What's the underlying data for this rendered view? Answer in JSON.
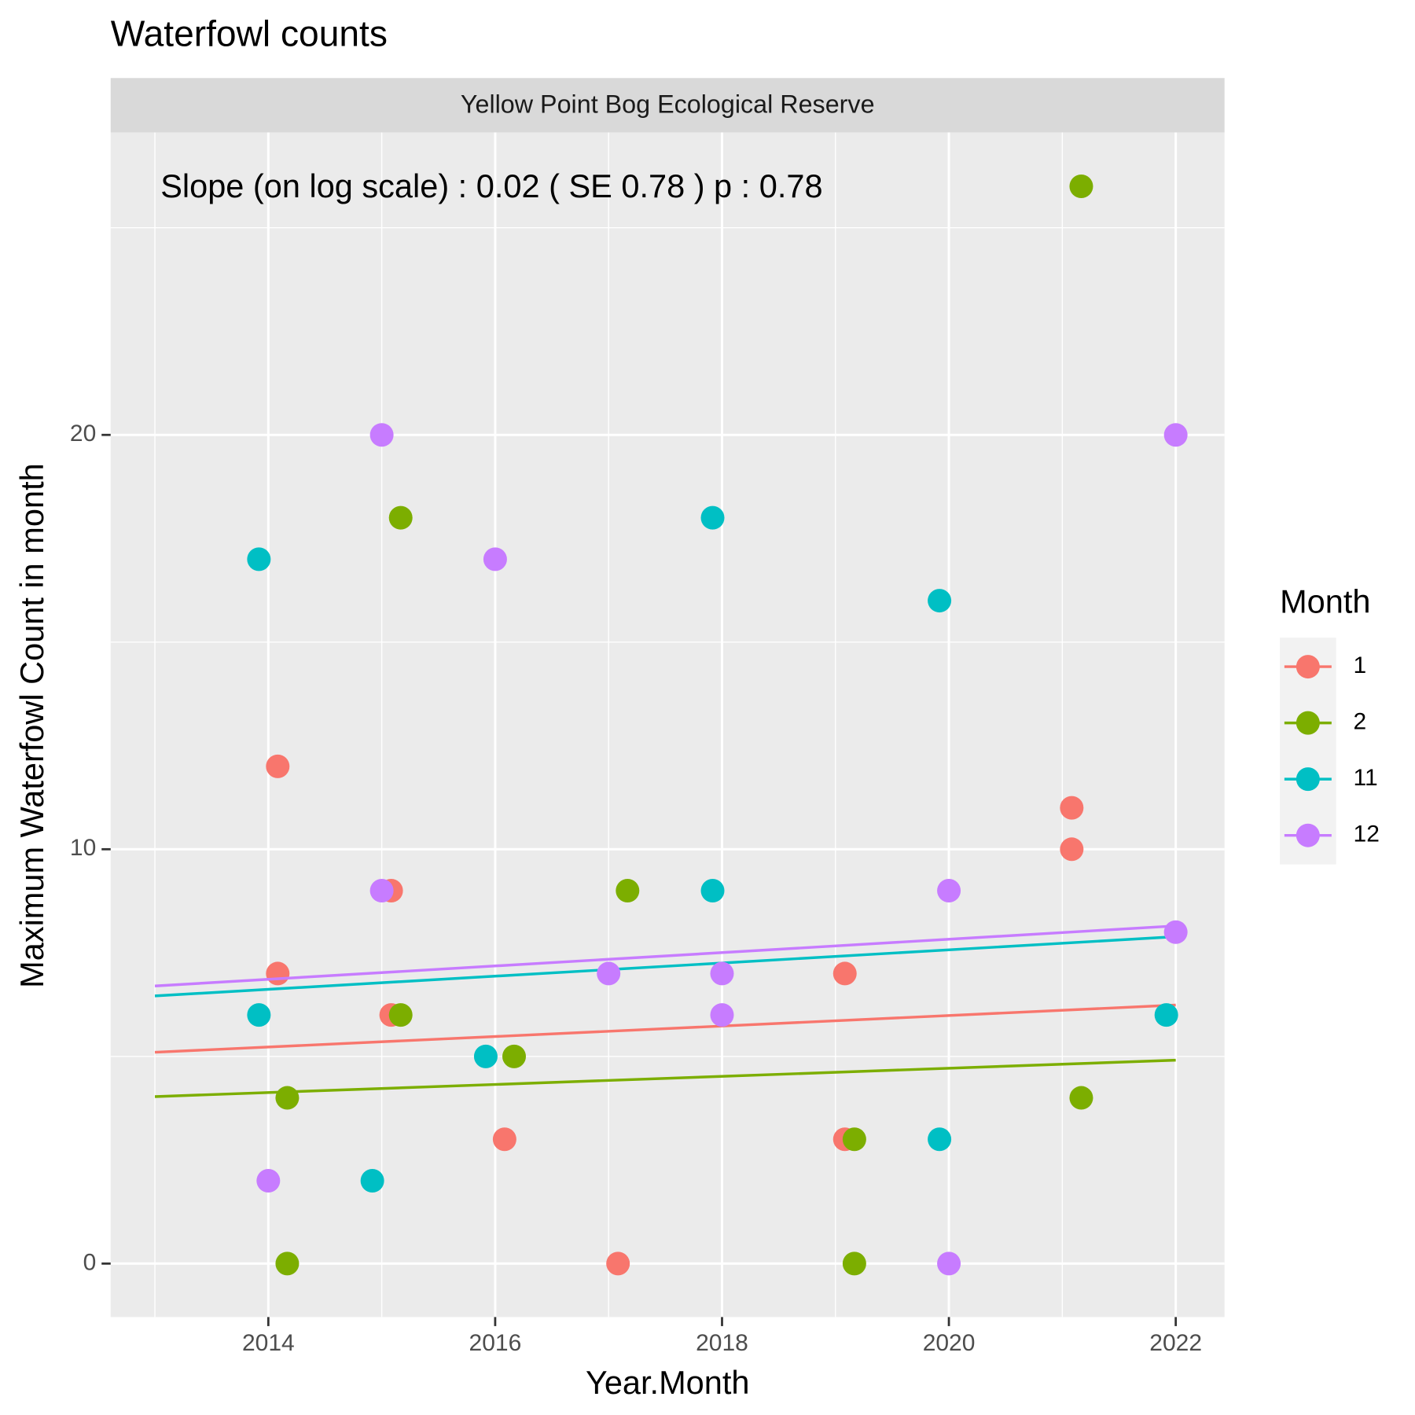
{
  "chart_data": {
    "type": "scatter",
    "title": "Waterfowl counts",
    "strip": "Yellow Point Bog Ecological Reserve",
    "annotation": "Slope (on log scale) :  0.02  ( SE  0.78 )  p : 0.78",
    "x_label": "Year.Month",
    "y_label": "Maximum Waterfowl Count in month",
    "legend_title": "Month",
    "xlim": [
      2012.61,
      2022.43
    ],
    "ylim": [
      -1.29,
      27.3
    ],
    "xticks": [
      2014,
      2016,
      2018,
      2020,
      2022
    ],
    "yticks": [
      0,
      10,
      20
    ],
    "grid": true,
    "trend_x": [
      2013,
      2022
    ],
    "series": [
      {
        "name": "1",
        "color": "#F8766D",
        "x": [
          2014.083,
          2014.083,
          2015.083,
          2015.083,
          2016.083,
          2017.083,
          2019.083,
          2019.083,
          2021.083,
          2021.083
        ],
        "values": [
          12,
          7,
          9,
          6,
          3,
          0,
          7,
          3,
          11,
          10
        ],
        "trend": [
          5.1,
          6.24
        ]
      },
      {
        "name": "2",
        "color": "#7CAE00",
        "x": [
          2014.167,
          2014.167,
          2015.167,
          2015.167,
          2016.167,
          2017.167,
          2019.167,
          2019.167,
          2021.167,
          2021.167
        ],
        "values": [
          4,
          0,
          18,
          6,
          5,
          9,
          3,
          0,
          26,
          4
        ],
        "trend": [
          4.03,
          4.91
        ]
      },
      {
        "name": "11",
        "color": "#00BFC4",
        "x": [
          2013.917,
          2013.917,
          2014.917,
          2015.917,
          2017.917,
          2017.917,
          2019.917,
          2019.917,
          2021.917
        ],
        "values": [
          17,
          6,
          2,
          5,
          18,
          9,
          16,
          3,
          6
        ],
        "trend": [
          6.46,
          7.89
        ]
      },
      {
        "name": "12",
        "color": "#C77CFF",
        "x": [
          2014.0,
          2015.0,
          2015.0,
          2016.0,
          2017.0,
          2018.0,
          2018.0,
          2020.0,
          2020.0,
          2022.0,
          2022.0
        ],
        "values": [
          2,
          20,
          9,
          17,
          7,
          7,
          6,
          9,
          0,
          20,
          8
        ],
        "trend": [
          6.7,
          8.15
        ]
      }
    ]
  }
}
